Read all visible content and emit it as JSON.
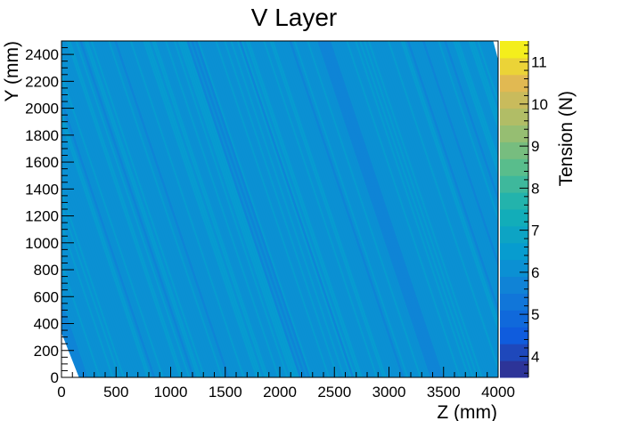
{
  "chart_data": {
    "type": "heatmap",
    "title": "V Layer",
    "xlabel": "Z (mm)",
    "ylabel": "Y (mm)",
    "zlabel": "Tension (N)",
    "xlim": [
      0,
      4000
    ],
    "ylim": [
      0,
      2500
    ],
    "zlim": [
      3.5,
      11.5
    ],
    "x_ticks": [
      0,
      500,
      1000,
      1500,
      2000,
      2500,
      3000,
      3500,
      4000
    ],
    "y_ticks": [
      0,
      200,
      400,
      600,
      800,
      1000,
      1200,
      1400,
      1600,
      1800,
      2000,
      2200,
      2400
    ],
    "z_ticks": [
      4,
      5,
      6,
      7,
      8,
      9,
      10,
      11
    ],
    "palette": "kBird",
    "background_tension": 6.2,
    "wire_slope_dz_dy": -0.414,
    "low_tension_band_z_at_y0": [
      3400,
      3500
    ],
    "low_tension_edge_z_at_y0": [
      0,
      160
    ],
    "grid": false,
    "legend": "colorbar-right"
  }
}
